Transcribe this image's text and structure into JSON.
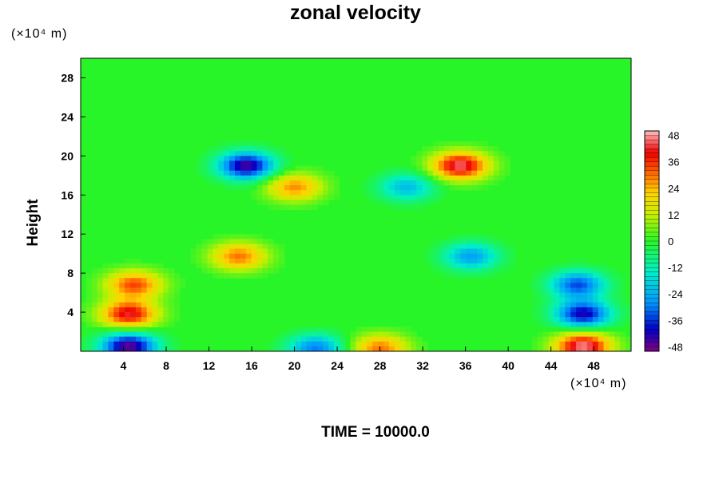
{
  "title": "zonal velocity",
  "unit_y": "(×10⁴ m)",
  "unit_x": "(×10⁴ m)",
  "ylabel": "Height",
  "time_label": "TIME = 10000.0",
  "chart_data": {
    "type": "heatmap",
    "title": "zonal velocity",
    "ylabel": "Height",
    "xlim": [
      0,
      51.5
    ],
    "ylim": [
      0,
      30
    ],
    "x_ticks": [
      "4",
      "8",
      "12",
      "16",
      "20",
      "24",
      "28",
      "32",
      "36",
      "40",
      "44",
      "48"
    ],
    "x_tick_values": [
      4,
      8,
      12,
      16,
      20,
      24,
      28,
      32,
      36,
      40,
      44,
      48
    ],
    "y_ticks": [
      "4",
      "8",
      "12",
      "16",
      "20",
      "24",
      "28"
    ],
    "y_tick_values": [
      4,
      8,
      12,
      16,
      20,
      24,
      28
    ],
    "colorbar": {
      "min": -50,
      "max": 50,
      "tick_values": [
        48,
        36,
        24,
        12,
        0,
        -12,
        -24,
        -36,
        -48
      ],
      "tick_labels": [
        "48",
        "36",
        "24",
        "12",
        "0",
        "-12",
        "-24",
        "-36",
        "-48"
      ]
    },
    "features": [
      {
        "x": 4.5,
        "y": 0.5,
        "value": -48
      },
      {
        "x": 4.5,
        "y": 3.8,
        "value": 42
      },
      {
        "x": 5.0,
        "y": 6.8,
        "value": 34
      },
      {
        "x": 15.5,
        "y": 19.0,
        "value": -46
      },
      {
        "x": 20.0,
        "y": 16.8,
        "value": 28
      },
      {
        "x": 14.8,
        "y": 9.7,
        "value": 30
      },
      {
        "x": 47.0,
        "y": 0.5,
        "value": 48
      },
      {
        "x": 47.0,
        "y": 3.8,
        "value": -42
      },
      {
        "x": 46.5,
        "y": 6.8,
        "value": -34
      },
      {
        "x": 35.5,
        "y": 19.0,
        "value": 46
      },
      {
        "x": 30.5,
        "y": 16.8,
        "value": -22
      },
      {
        "x": 36.5,
        "y": 9.7,
        "value": -26
      },
      {
        "x": 22.0,
        "y": 0.3,
        "value": -30
      },
      {
        "x": 28.0,
        "y": 0.3,
        "value": 30
      }
    ]
  }
}
